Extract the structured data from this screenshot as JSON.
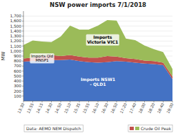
{
  "chart_data": {
    "type": "area",
    "stacked": true,
    "title": "NSW power imports 7/1/2018",
    "y_label": "MW",
    "categories": [
      "13:30",
      "13:55",
      "14:15",
      "14:30",
      "14:50",
      "15:10",
      "15:35",
      "15:55",
      "16:10",
      "16:30",
      "16:50",
      "17:20",
      "17:40",
      "18:00",
      "18:20",
      "18:40",
      "19:00"
    ],
    "series": [
      {
        "name": "Imports NSW1\n- QLD1",
        "color": "#4472c4",
        "values": [
          790,
          800,
          810,
          820,
          820,
          830,
          800,
          780,
          770,
          780,
          800,
          790,
          770,
          750,
          740,
          720,
          440
        ]
      },
      {
        "name": "Imports Qld\nMNSP1",
        "color": "#c0504d",
        "values": [
          60,
          70,
          90,
          100,
          80,
          90,
          90,
          90,
          100,
          120,
          90,
          70,
          70,
          60,
          60,
          50,
          50
        ]
      },
      {
        "name": "Imports\nVictoria VIC1",
        "color": "#9bbb59",
        "values": [
          270,
          340,
          290,
          260,
          390,
          590,
          540,
          560,
          640,
          720,
          720,
          390,
          380,
          300,
          240,
          210,
          150
        ]
      }
    ],
    "ylim": [
      0,
      1800
    ],
    "yticks": [
      100,
      200,
      300,
      400,
      500,
      600,
      700,
      800,
      900,
      {
        "value": 1000,
        "label": "1,000"
      },
      {
        "value": 1100,
        "label": "1,100"
      },
      {
        "value": 1200,
        "label": "1,200"
      },
      {
        "value": 1300,
        "label": "1,300"
      },
      {
        "value": 1400,
        "label": "1,400"
      },
      {
        "value": 1500,
        "label": "1,500"
      },
      {
        "value": 1600,
        "label": "1,600"
      },
      {
        "value": 1700,
        "label": "1,700"
      }
    ],
    "grid": true,
    "annotations": [
      "Data: AEMO NEM Dispatch",
      "Crude Oil Peak"
    ]
  }
}
